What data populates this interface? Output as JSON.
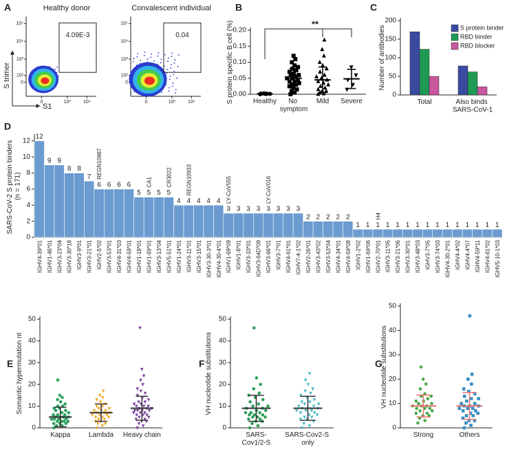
{
  "chart_data": [
    {
      "panel": "A",
      "type": "flow",
      "ylabel": "S trimer",
      "xlabel": "S1",
      "xlim": [
        -300,
        30000
      ],
      "ylim": [
        -300,
        250000
      ],
      "xticks": [
        0,
        {
          "value": 1000,
          "label": "10³"
        },
        {
          "value": 10000,
          "label": "10⁴"
        }
      ],
      "yticks": [
        0,
        {
          "value": 100,
          "label": "10²"
        },
        {
          "value": 1000,
          "label": "10³"
        },
        {
          "value": 10000,
          "label": "10⁴"
        },
        {
          "value": 100000,
          "label": "10⁵"
        }
      ],
      "plots": [
        {
          "title": "Healthy donor",
          "gate": {
            "value": 0.00409,
            "label": "4.09E-3"
          }
        },
        {
          "title": "Convalescent individual",
          "gate": 0.04
        }
      ]
    },
    {
      "panel": "B",
      "type": "dot",
      "ylabel": "S protein specific B cell (%)",
      "ylim": [
        0,
        0.2
      ],
      "yticks": [
        {
          "value": 0,
          "label": "0.00"
        },
        {
          "value": 0.05,
          "label": "0.05"
        },
        {
          "value": 0.1,
          "label": "0.10"
        },
        {
          "value": 0.15,
          "label": "0.15"
        },
        {
          "value": 0.2,
          "label": "0.20"
        }
      ],
      "significance": "**",
      "mean_color": "#000000",
      "groups": [
        {
          "name": "Healthy",
          "color": "#000000",
          "marker": "circle",
          "mean": 0.001,
          "sd": 0.001,
          "values": [
            0.0,
            0.0005,
            0.001,
            0.001,
            0.0015,
            0.002,
            0.002,
            0.003
          ]
        },
        {
          "name": "No symptom",
          "color": "#000000",
          "marker": "square",
          "mean": 0.05,
          "sd": 0.03,
          "values": [
            0.0,
            0.005,
            0.01,
            0.015,
            0.02,
            0.025,
            0.03,
            0.03,
            0.035,
            0.04,
            0.04,
            0.045,
            0.05,
            0.05,
            0.055,
            0.06,
            0.06,
            0.065,
            0.07,
            0.075,
            0.08,
            0.085,
            0.09,
            0.1,
            0.11,
            0.12
          ]
        },
        {
          "name": "Mild",
          "color": "#000000",
          "marker": "triangle",
          "mean": 0.045,
          "sd": 0.04,
          "values": [
            0.0,
            0.002,
            0.005,
            0.01,
            0.01,
            0.015,
            0.02,
            0.025,
            0.03,
            0.035,
            0.04,
            0.045,
            0.05,
            0.055,
            0.06,
            0.07,
            0.08,
            0.09,
            0.1,
            0.12,
            0.14,
            0.17
          ]
        },
        {
          "name": "Severe",
          "color": "#000000",
          "marker": "triangle-down",
          "mean": 0.048,
          "sd": 0.03,
          "values": [
            0.015,
            0.03,
            0.045,
            0.06,
            0.085
          ]
        }
      ]
    },
    {
      "panel": "C",
      "type": "grouped_bar",
      "ylabel": "Number of antibodies",
      "categories": [
        "Total",
        "Also binds SARS-CoV-1"
      ],
      "ylim": [
        0,
        200
      ],
      "yticks": [
        0,
        50,
        100,
        150,
        200
      ],
      "legend": "upper right",
      "series": [
        {
          "name": "S protein binder",
          "color": "#3a4aa0",
          "values": [
            170,
            78
          ]
        },
        {
          "name": "RBD binder",
          "color": "#1f9a55",
          "values": [
            123,
            62
          ]
        },
        {
          "name": "RBD blocker",
          "color": "#c8579e",
          "values": [
            50,
            22
          ]
        }
      ]
    },
    {
      "panel": "D",
      "type": "bar",
      "ylabel": "SARS-CoV-2 S protein binders (n = 171)",
      "color": "#6b9bd0",
      "ylim": [
        0,
        12.5
      ],
      "yticks": [
        0,
        2,
        4,
        6,
        8,
        10,
        12
      ],
      "categories": [
        "IGHV4-39*01",
        "IGHV1-46*01",
        "IGHV3-23*04",
        "IGHV3-30*18",
        "IGHV3-9*01",
        "IGHV3-21*01",
        "IGHV2-5*02",
        "IGHV3-53*01",
        "IGHV4-31*03",
        "IGHV4-59*01",
        "IGHV1-18*01",
        "IGHV1-69*01",
        "IGHV3-13*04",
        "IGHV5-51*01",
        "IGHV1-24*01",
        "IGHV3-11*01",
        "IGHV3-15*01",
        "IGHV3-30-3*01",
        "IGHV4-30-4*01",
        "IGHV1-69*09",
        "IGHV1-8*01",
        "IGHV3-33*01",
        "IGHV3-64D*09",
        "IGHV3-66*01",
        "IGHV3-7*01",
        "IGHV4-61*01",
        "IGHV7-4-1*02",
        "IGHV2-26*01",
        "IGHV3-43*02",
        "IGHV3-53*04",
        "IGHV4-34*01",
        "IGHV4-59*08",
        "IGHV1-2*02",
        "IGHV1-69*06",
        "IGHV2-70*01",
        "IGHV3-11*05",
        "IGHV3-21*06",
        "IGHV3-30*01",
        "IGHV3-48*03",
        "IGHV3-7*05",
        "IGHV3-74*03",
        "IGHV4-30-2*01",
        "IGHV4-4*02",
        "IGHV4-4*07",
        "IGHV4-59*11",
        "IGHV4-61*02",
        "IGHV5-10-1*03"
      ],
      "values": [
        12,
        9,
        9,
        8,
        8,
        7,
        6,
        6,
        6,
        6,
        5,
        5,
        5,
        5,
        4,
        4,
        4,
        4,
        4,
        3,
        3,
        3,
        3,
        3,
        3,
        3,
        3,
        2,
        2,
        2,
        2,
        2,
        1,
        1,
        1,
        1,
        1,
        1,
        1,
        1,
        1,
        1,
        1,
        1,
        1,
        1,
        1
      ],
      "bar_annotations": [
        null,
        null,
        null,
        null,
        null,
        null,
        "REGN10987",
        null,
        null,
        null,
        null,
        "CA1",
        null,
        "CR3022",
        null,
        "REGN10933",
        null,
        null,
        null,
        "LY-CoV555",
        null,
        null,
        null,
        "LY-CoV016",
        null,
        null,
        null,
        null,
        null,
        null,
        null,
        null,
        null,
        null,
        "H4",
        null,
        null,
        null,
        null,
        null,
        null,
        null,
        null,
        null,
        null,
        null,
        null
      ]
    },
    {
      "panel": "E",
      "type": "dot",
      "ylabel": "Somantic hypermutation nt",
      "ylim": [
        0,
        50
      ],
      "yticks": [
        0,
        10,
        20,
        30,
        40,
        50
      ],
      "mean_color": "#333333",
      "groups": [
        {
          "name": "Kappa",
          "color": "#2ca25f",
          "marker": "circle",
          "mean": 5,
          "sd": 4.5,
          "values": [
            0,
            1,
            1,
            2,
            2,
            2,
            3,
            3,
            3,
            3,
            4,
            4,
            4,
            4,
            5,
            5,
            5,
            5,
            6,
            6,
            6,
            7,
            7,
            8,
            8,
            9,
            9,
            10,
            10,
            11,
            12,
            13,
            14,
            15,
            22
          ]
        },
        {
          "name": "Lambda",
          "color": "#f5a623",
          "marker": "triangle-down",
          "mean": 7,
          "sd": 4,
          "values": [
            0,
            1,
            2,
            2,
            3,
            3,
            4,
            4,
            5,
            5,
            5,
            6,
            6,
            6,
            7,
            7,
            7,
            8,
            8,
            8,
            9,
            9,
            10,
            10,
            11,
            12,
            13,
            14,
            15,
            17
          ]
        },
        {
          "name": "Heavy chain",
          "color": "#7b3f9e",
          "marker": "triangle-down",
          "mean": 9,
          "sd": 5.5,
          "values": [
            0,
            1,
            2,
            3,
            3,
            4,
            4,
            5,
            5,
            6,
            6,
            6,
            7,
            7,
            7,
            8,
            8,
            8,
            8,
            9,
            9,
            9,
            10,
            10,
            10,
            11,
            11,
            12,
            12,
            13,
            14,
            15,
            16,
            17,
            18,
            20,
            22,
            24,
            27,
            46
          ]
        }
      ]
    },
    {
      "panel": "F",
      "type": "dot",
      "ylabel": "VH nucleotide substitutions",
      "ylim": [
        0,
        50
      ],
      "yticks": [
        0,
        10,
        20,
        30,
        40,
        50
      ],
      "mean_color": "#333333",
      "groups": [
        {
          "name": "SARS-Cov1/2-S",
          "color": "#2e9e5b",
          "marker": "circle",
          "mean": 9,
          "sd": 6,
          "values": [
            0,
            1,
            2,
            3,
            3,
            4,
            4,
            5,
            5,
            5,
            6,
            6,
            6,
            7,
            7,
            7,
            8,
            8,
            9,
            9,
            10,
            10,
            11,
            12,
            13,
            14,
            15,
            16,
            18,
            20,
            23,
            46
          ]
        },
        {
          "name": "SARS-Cov2-S only",
          "color": "#45b5c4",
          "marker": "triangle-down",
          "mean": 9,
          "sd": 5.5,
          "values": [
            0,
            1,
            2,
            3,
            4,
            4,
            5,
            5,
            6,
            6,
            7,
            7,
            8,
            8,
            8,
            9,
            9,
            9,
            10,
            10,
            11,
            11,
            12,
            12,
            13,
            14,
            15,
            16,
            17,
            18,
            20,
            22,
            25
          ]
        }
      ]
    },
    {
      "panel": "G",
      "type": "dot",
      "ylabel": "VH nucleotide substitutions",
      "ylim": [
        0,
        50
      ],
      "yticks": [
        0,
        10,
        20,
        30,
        40,
        50
      ],
      "mean_color": "#e8736c",
      "groups": [
        {
          "name": "Strong",
          "color": "#4aa84a",
          "marker": "circle",
          "mean": 9,
          "sd": 4.5,
          "values": [
            2,
            3,
            4,
            5,
            5,
            6,
            6,
            7,
            7,
            8,
            8,
            8,
            9,
            9,
            9,
            10,
            10,
            11,
            11,
            12,
            13,
            13,
            14,
            16,
            18,
            20,
            25
          ]
        },
        {
          "name": "Others",
          "color": "#3a8fc4",
          "marker": "square",
          "mean": 9,
          "sd": 5.5,
          "values": [
            0,
            1,
            2,
            3,
            3,
            4,
            5,
            5,
            6,
            6,
            7,
            7,
            8,
            8,
            8,
            9,
            9,
            9,
            10,
            10,
            11,
            12,
            12,
            13,
            14,
            15,
            16,
            18,
            20,
            22,
            46
          ]
        }
      ]
    }
  ]
}
